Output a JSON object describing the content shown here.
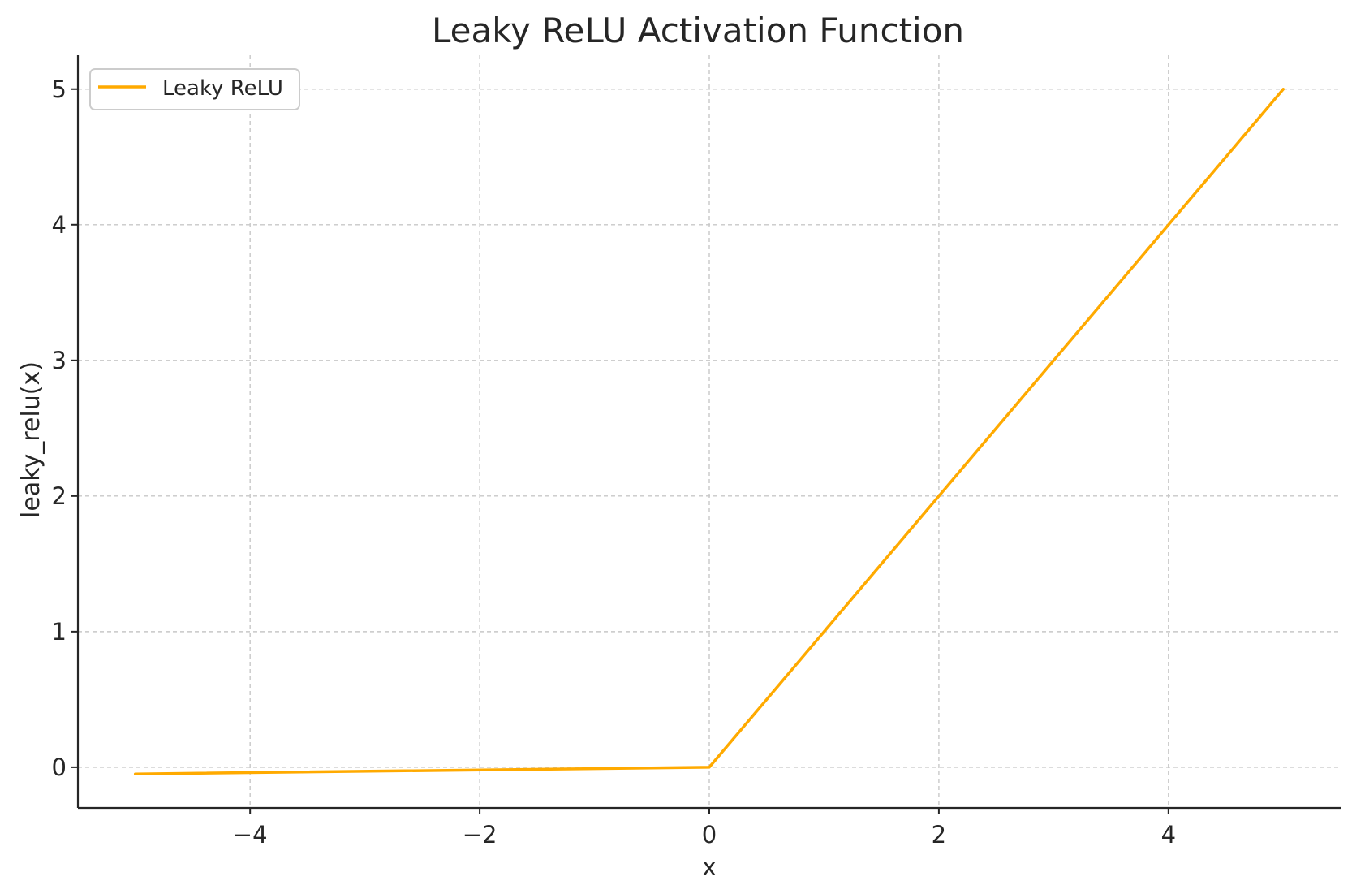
{
  "chart_data": {
    "type": "line",
    "title": "Leaky ReLU Activation Function",
    "xlabel": "x",
    "ylabel": "leaky_relu(x)",
    "xlim": [
      -5.5,
      5.5
    ],
    "ylim": [
      -0.3,
      5.25
    ],
    "xticks": [
      -4,
      -2,
      0,
      2,
      4
    ],
    "xtick_labels": [
      "−4",
      "−2",
      "0",
      "2",
      "4"
    ],
    "yticks": [
      0,
      1,
      2,
      3,
      4,
      5
    ],
    "ytick_labels": [
      "0",
      "1",
      "2",
      "3",
      "4",
      "5"
    ],
    "grid": true,
    "legend_position": "top-left",
    "series": [
      {
        "name": "Leaky ReLU",
        "color": "#FFAA00",
        "x": [
          -5,
          0,
          5
        ],
        "y": [
          -0.05,
          0,
          5
        ]
      }
    ]
  }
}
